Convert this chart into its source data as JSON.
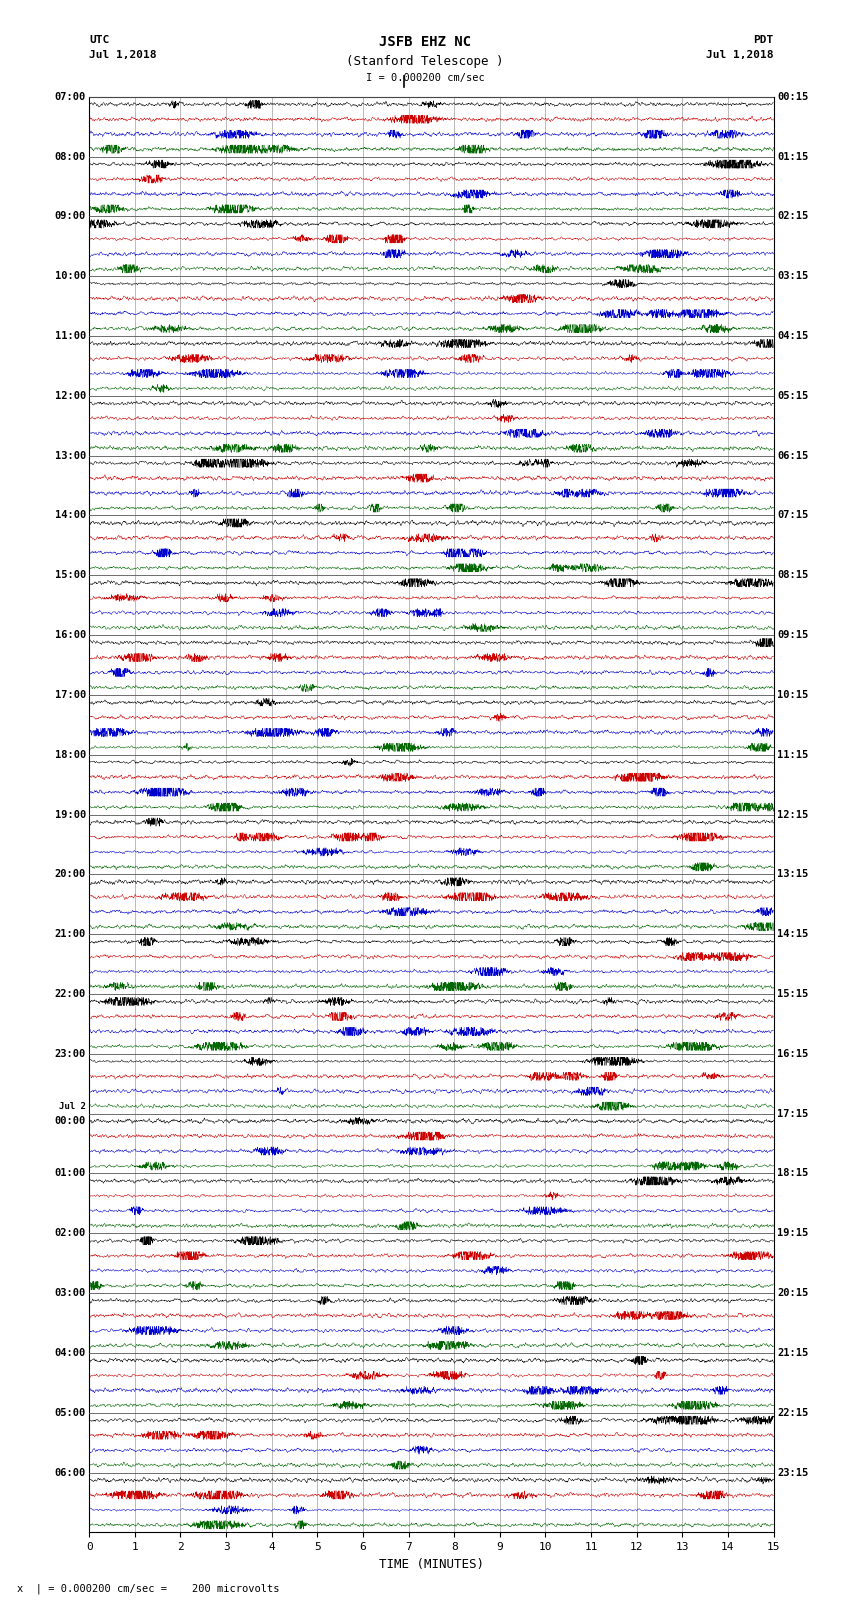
{
  "title_line1": "JSFB EHZ NC",
  "title_line2": "(Stanford Telescope )",
  "scale_label": "I = 0.000200 cm/sec",
  "xlabel": "TIME (MINUTES)",
  "footer": "x  | = 0.000200 cm/sec =    200 microvolts",
  "utc_labels": [
    "07:00",
    "08:00",
    "09:00",
    "10:00",
    "11:00",
    "12:00",
    "13:00",
    "14:00",
    "15:00",
    "16:00",
    "17:00",
    "18:00",
    "19:00",
    "20:00",
    "21:00",
    "22:00",
    "23:00",
    "Jul 2",
    "00:00",
    "01:00",
    "02:00",
    "03:00",
    "04:00",
    "05:00",
    "06:00"
  ],
  "pdt_labels": [
    "00:15",
    "01:15",
    "02:15",
    "03:15",
    "04:15",
    "05:15",
    "06:15",
    "07:15",
    "08:15",
    "09:15",
    "10:15",
    "11:15",
    "12:15",
    "13:15",
    "14:15",
    "15:15",
    "16:15",
    "17:15",
    "18:15",
    "19:15",
    "20:15",
    "21:15",
    "22:15",
    "23:15"
  ],
  "n_hours": 24,
  "n_traces_per_hour": 4,
  "trace_colors": [
    "#000000",
    "#cc0000",
    "#0000cc",
    "#006600"
  ],
  "bg_color": "#ffffff",
  "figsize": [
    8.5,
    16.13
  ],
  "dpi": 100,
  "xticks": [
    0,
    1,
    2,
    3,
    4,
    5,
    6,
    7,
    8,
    9,
    10,
    11,
    12,
    13,
    14,
    15
  ],
  "xmin": 0,
  "xmax": 15,
  "noise_seed": 12345
}
